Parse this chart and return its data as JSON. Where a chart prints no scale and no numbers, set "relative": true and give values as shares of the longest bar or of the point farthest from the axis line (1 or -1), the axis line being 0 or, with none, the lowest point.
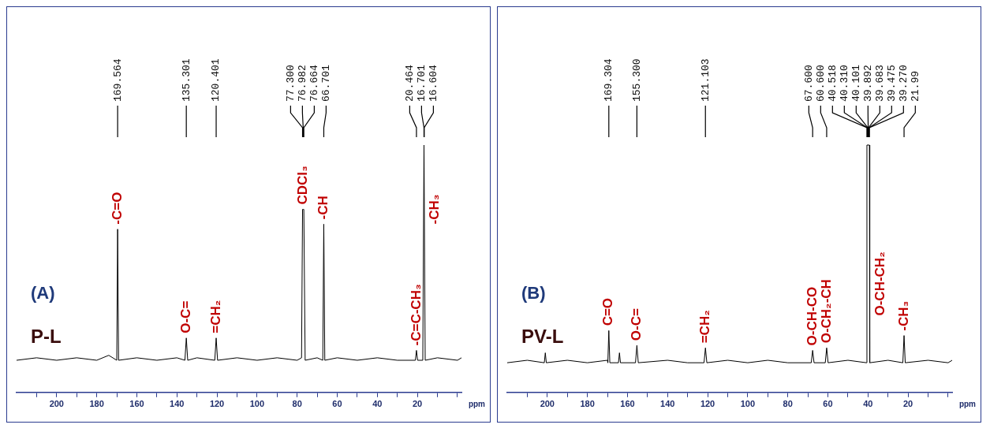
{
  "chart_data": [
    {
      "type": "line",
      "title": "(A)",
      "subtitle": "P-L",
      "xlabel": "ppm",
      "relative": true,
      "color": "#000000",
      "x": [
        220,
        210,
        200,
        190,
        180,
        174,
        170.0,
        169.564,
        169.1,
        160,
        150,
        140,
        136.0,
        135.301,
        134.6,
        130,
        121.1,
        120.401,
        119.7,
        110,
        100,
        90,
        80,
        77.8,
        77.3,
        76.982,
        76.664,
        76.0,
        70,
        67.2,
        66.701,
        66.2,
        60,
        50,
        40,
        30,
        21.0,
        20.464,
        19.9,
        17.3,
        16.701,
        16.604,
        16.1,
        10,
        0,
        -2
      ],
      "values": [
        0.13,
        0.14,
        0.13,
        0.14,
        0.13,
        0.15,
        0.13,
        0.66,
        0.13,
        0.14,
        0.13,
        0.14,
        0.13,
        0.22,
        0.13,
        0.14,
        0.13,
        0.22,
        0.13,
        0.14,
        0.13,
        0.14,
        0.13,
        0.14,
        0.74,
        0.74,
        0.74,
        0.13,
        0.14,
        0.13,
        0.68,
        0.13,
        0.14,
        0.13,
        0.14,
        0.13,
        0.13,
        0.17,
        0.13,
        0.13,
        1.0,
        1.0,
        0.13,
        0.14,
        0.13,
        0.14
      ],
      "xlim": [
        220,
        -2
      ],
      "xticks": [
        {
          "value": 210,
          "label": null
        },
        200,
        {
          "value": 190,
          "label": null
        },
        180,
        {
          "value": 170,
          "label": null
        },
        160,
        {
          "value": 150,
          "label": null
        },
        140,
        {
          "value": 130,
          "label": null
        },
        120,
        {
          "value": 110,
          "label": null
        },
        100,
        {
          "value": 90,
          "label": null
        },
        80,
        {
          "value": 70,
          "label": null
        },
        60,
        {
          "value": 50,
          "label": null
        },
        40,
        {
          "value": 30,
          "label": null
        },
        20,
        {
          "value": 10,
          "label": null
        },
        {
          "value": 0,
          "label": null
        }
      ],
      "annotations": [
        {
          "text": "169.564",
          "x": 169.564
        },
        {
          "text": "135.301",
          "x": 135.301
        },
        {
          "text": "120.401",
          "x": 120.401
        },
        {
          "text": "77.300",
          "x": 77.3
        },
        {
          "text": "76.982",
          "x": 76.982
        },
        {
          "text": "76.664",
          "x": 76.664
        },
        {
          "text": "66.701",
          "x": 66.701
        },
        {
          "text": "20.464",
          "x": 20.464
        },
        {
          "text": "16.701",
          "x": 16.701
        },
        {
          "text": "16.604",
          "x": 16.604
        },
        {
          "text": "-C=O",
          "x": 169.564,
          "y": 0.66
        },
        {
          "text": "O-C=",
          "x": 135.301,
          "y": 0.22
        },
        {
          "text": "=CH₂",
          "x": 120.401,
          "y": 0.22
        },
        {
          "text": "CDCl₃",
          "x": 76.982,
          "y": 0.74
        },
        {
          "text": "-CH",
          "x": 66.701,
          "y": 0.68
        },
        {
          "text": "-C=C-CH₃",
          "x": 20.464,
          "y": 0.17
        },
        {
          "text": "-CH₃",
          "x": 16.604,
          "y": 0.68
        }
      ]
    },
    {
      "type": "line",
      "title": "(B)",
      "subtitle": "PV-L",
      "xlabel": "ppm",
      "relative": true,
      "color": "#000000",
      "x": [
        220,
        210,
        201.5,
        201,
        200.5,
        190,
        180,
        170,
        169.8,
        169.304,
        168.8,
        164.5,
        164,
        163.5,
        156,
        155.3,
        154.6,
        140,
        130,
        121.8,
        121.103,
        120.4,
        110,
        100,
        90,
        80,
        68.3,
        67.6,
        66.9,
        61.3,
        60.6,
        59.9,
        50,
        40.7,
        40.518,
        39.27,
        39.1,
        30,
        22.6,
        21.99,
        21.4,
        10,
        0,
        -2
      ],
      "values": [
        0.12,
        0.13,
        0.12,
        0.16,
        0.12,
        0.13,
        0.12,
        0.13,
        0.12,
        0.25,
        0.12,
        0.12,
        0.16,
        0.12,
        0.12,
        0.19,
        0.12,
        0.13,
        0.12,
        0.12,
        0.18,
        0.12,
        0.13,
        0.12,
        0.13,
        0.12,
        0.12,
        0.17,
        0.12,
        0.12,
        0.18,
        0.12,
        0.13,
        0.12,
        1.0,
        1.0,
        0.12,
        0.13,
        0.12,
        0.23,
        0.12,
        0.13,
        0.12,
        0.13
      ],
      "xlim": [
        220,
        -2
      ],
      "xticks": [
        {
          "value": 210,
          "label": null
        },
        200,
        {
          "value": 190,
          "label": null
        },
        180,
        {
          "value": 170,
          "label": null
        },
        160,
        {
          "value": 150,
          "label": null
        },
        140,
        {
          "value": 130,
          "label": null
        },
        120,
        {
          "value": 110,
          "label": null
        },
        100,
        {
          "value": 90,
          "label": null
        },
        80,
        {
          "value": 70,
          "label": null
        },
        60,
        {
          "value": 50,
          "label": null
        },
        40,
        {
          "value": 30,
          "label": null
        },
        20,
        {
          "value": 10,
          "label": null
        },
        {
          "value": 0,
          "label": null
        }
      ],
      "annotations": [
        {
          "text": "169.304",
          "x": 169.304
        },
        {
          "text": "155.300",
          "x": 155.3
        },
        {
          "text": "121.103",
          "x": 121.103
        },
        {
          "text": "67.600",
          "x": 67.6
        },
        {
          "text": "60.600",
          "x": 60.6
        },
        {
          "text": "40.518",
          "x": 40.518
        },
        {
          "text": "40.310",
          "x": 40.31
        },
        {
          "text": "40.101",
          "x": 40.101
        },
        {
          "text": "39.892",
          "x": 39.892
        },
        {
          "text": "39.683",
          "x": 39.683
        },
        {
          "text": "39.475",
          "x": 39.475
        },
        {
          "text": "39.270",
          "x": 39.27
        },
        {
          "text": "21.99",
          "x": 21.99
        },
        {
          "text": "C=O",
          "x": 169.304,
          "y": 0.25
        },
        {
          "text": "O-C=",
          "x": 155.3,
          "y": 0.19
        },
        {
          "text": "=CH₂",
          "x": 121.103,
          "y": 0.18
        },
        {
          "text": "O-CH-CO",
          "x": 67.6,
          "y": 0.17
        },
        {
          "text": "O-CH₂-CH",
          "x": 60.6,
          "y": 0.18
        },
        {
          "text": "O-CH-CH₂",
          "x": 39.27,
          "y": 0.31
        },
        {
          "text": "-CH₃",
          "x": 21.99,
          "y": 0.23
        }
      ]
    }
  ]
}
